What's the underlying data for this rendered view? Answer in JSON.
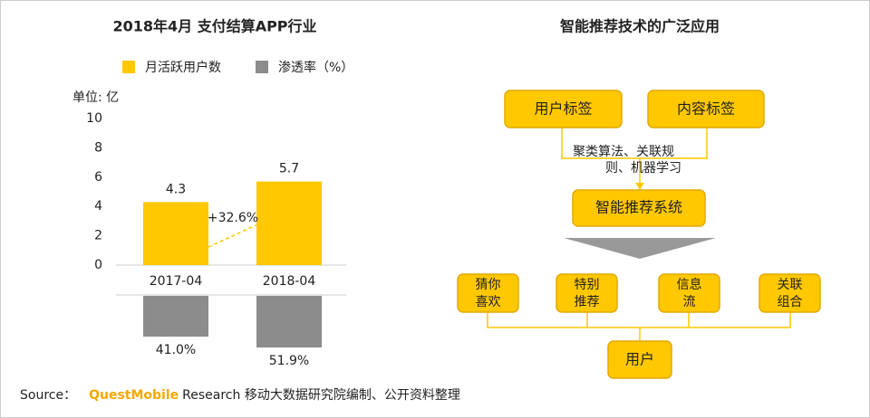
{
  "chart_data": {
    "type": "bar",
    "title": "2018年4月 支付结算APP行业",
    "unit_label": "单位: 亿",
    "categories": [
      "2017-04",
      "2018-04"
    ],
    "series": [
      {
        "name": "月活跃用户数",
        "color": "#FFC800",
        "values": [
          4.3,
          5.7
        ]
      },
      {
        "name": "渗透率（%）",
        "color": "#8C8C8C",
        "values": [
          41.0,
          51.9
        ],
        "value_labels": [
          "41.0%",
          "51.9%"
        ]
      }
    ],
    "ylim": [
      0,
      10
    ],
    "yticks": [
      0,
      2,
      4,
      6,
      8,
      10
    ],
    "annotation": "+32.6%"
  },
  "diagram": {
    "title": "智能推荐技术的广泛应用",
    "inputs": [
      "用户标签",
      "内容标签"
    ],
    "method": {
      "lines": [
        "聚类算法、关联规",
        "则、机器学习"
      ]
    },
    "system": "智能推荐系统",
    "outputs": [
      {
        "lines": [
          "猜你",
          "喜欢"
        ]
      },
      {
        "lines": [
          "特别",
          "推荐"
        ]
      },
      {
        "lines": [
          "信息",
          "流"
        ]
      },
      {
        "lines": [
          "关联",
          "组合"
        ]
      }
    ],
    "user": "用户"
  },
  "source": {
    "label": "Source：",
    "brand": "QuestMobile",
    "text": "Research 移动大数据研究院编制、公开资料整理"
  }
}
